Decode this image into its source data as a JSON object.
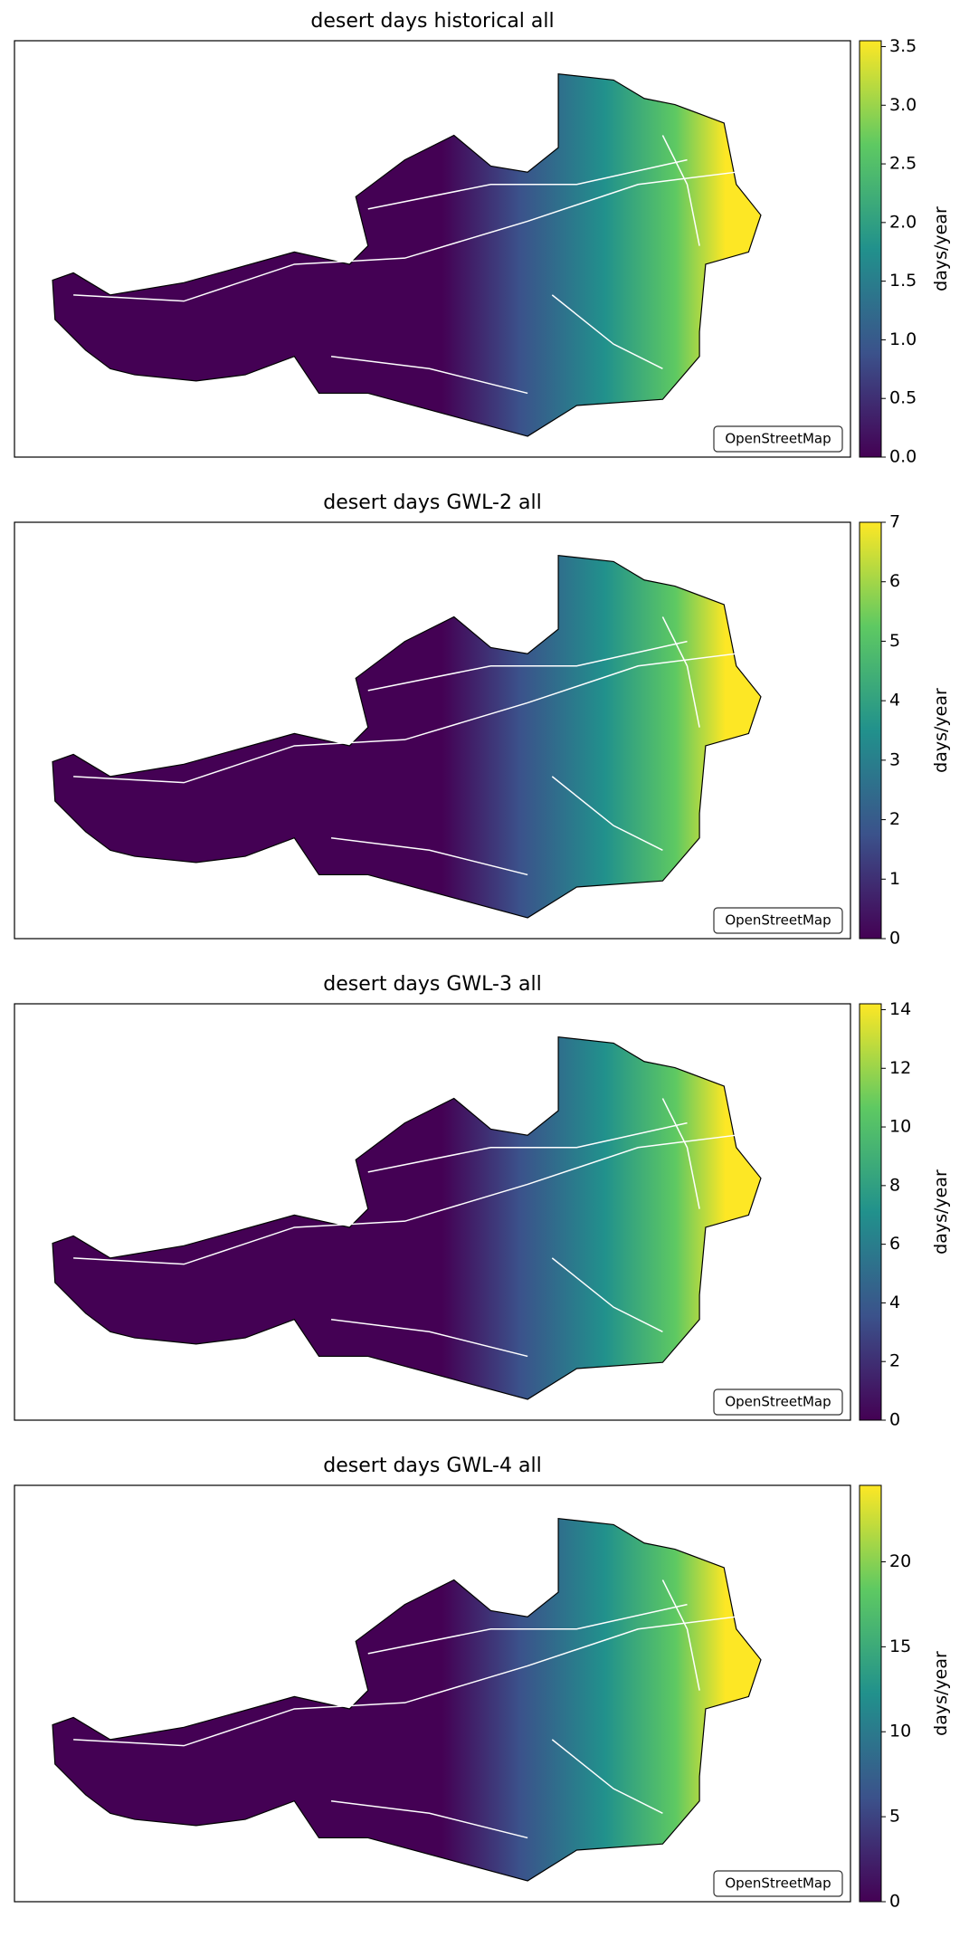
{
  "chart_data": [
    {
      "type": "heatmap",
      "title": "desert days historical all",
      "colormap": "viridis",
      "colorbar_label": "days/year",
      "attribution": "OpenStreetMap",
      "clim": [
        0,
        3.55
      ],
      "cticks": [
        {
          "value": 0,
          "label": "0.0"
        },
        0.5,
        {
          "value": 1,
          "label": "1.0"
        },
        1.5,
        {
          "value": 2,
          "label": "2.0"
        },
        2.5,
        {
          "value": 3,
          "label": "3.0"
        },
        3.5
      ]
    },
    {
      "type": "heatmap",
      "title": "desert days GWL-2 all",
      "colormap": "viridis",
      "colorbar_label": "days/year",
      "attribution": "OpenStreetMap",
      "clim": [
        0,
        7
      ],
      "cticks": [
        0,
        1,
        2,
        3,
        4,
        5,
        6,
        7
      ]
    },
    {
      "type": "heatmap",
      "title": "desert days GWL-3 all",
      "colormap": "viridis",
      "colorbar_label": "days/year",
      "attribution": "OpenStreetMap",
      "clim": [
        0,
        14.2
      ],
      "cticks": [
        0,
        2,
        4,
        6,
        8,
        10,
        12,
        14
      ]
    },
    {
      "type": "heatmap",
      "title": "desert days GWL-4 all",
      "colormap": "viridis",
      "colorbar_label": "days/year",
      "attribution": "OpenStreetMap",
      "clim": [
        0,
        24.5
      ],
      "cticks": [
        0,
        5,
        10,
        15,
        20
      ]
    }
  ]
}
